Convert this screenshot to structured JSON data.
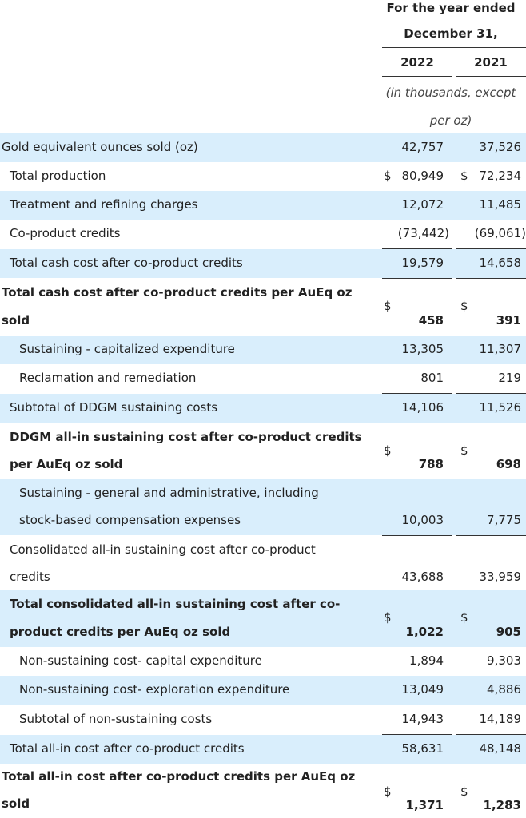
{
  "header": {
    "period_line1": "For the year ended",
    "period_line2": "December 31,",
    "year1": "2022",
    "year2": "2021",
    "units_line1": "(in thousands, except",
    "units_line2": "per oz)"
  },
  "currency": "$",
  "rows": [
    {
      "label": "Gold equivalent ounces sold (oz)",
      "v1": "42,757",
      "v2": "37,526"
    },
    {
      "label": "Total production",
      "v1": "80,949",
      "v2": "72,234"
    },
    {
      "label": "Treatment and refining charges",
      "v1": "12,072",
      "v2": "11,485"
    },
    {
      "label": "Co-product credits",
      "v1": "(73,442)",
      "v2": "(69,061)"
    },
    {
      "label": "Total cash cost after co-product credits",
      "v1": "19,579",
      "v2": "14,658"
    },
    {
      "label1": "Total cash cost after co-product credits per AuEq oz",
      "label2": "sold",
      "v1": "458",
      "v2": "391"
    },
    {
      "label": "Sustaining - capitalized expenditure",
      "v1": "13,305",
      "v2": "11,307"
    },
    {
      "label": "Reclamation and remediation",
      "v1": "801",
      "v2": "219"
    },
    {
      "label": "Subtotal of DDGM sustaining costs",
      "v1": "14,106",
      "v2": "11,526"
    },
    {
      "label1": "DDGM all-in sustaining cost after co-product credits",
      "label2": "per AuEq oz sold",
      "v1": "788",
      "v2": "698"
    },
    {
      "label1": "Sustaining - general and administrative, including",
      "label2": "stock-based compensation expenses",
      "v1": "10,003",
      "v2": "7,775"
    },
    {
      "label1": "Consolidated all-in sustaining cost after co-product",
      "label2": "credits",
      "v1": "43,688",
      "v2": "33,959"
    },
    {
      "label1": "Total consolidated all-in sustaining cost after co-",
      "label2": "product credits per AuEq oz sold",
      "v1": "1,022",
      "v2": "905"
    },
    {
      "label": "Non-sustaining cost- capital expenditure",
      "v1": "1,894",
      "v2": "9,303"
    },
    {
      "label": "Non-sustaining cost- exploration expenditure",
      "v1": "13,049",
      "v2": "4,886"
    },
    {
      "label": "Subtotal of non-sustaining costs",
      "v1": "14,943",
      "v2": "14,189"
    },
    {
      "label": "Total all-in cost after co-product credits",
      "v1": "58,631",
      "v2": "48,148"
    },
    {
      "label1": "Total all-in cost after co-product credits per AuEq oz",
      "label2": "sold",
      "v1": "1,371",
      "v2": "1,283"
    }
  ]
}
